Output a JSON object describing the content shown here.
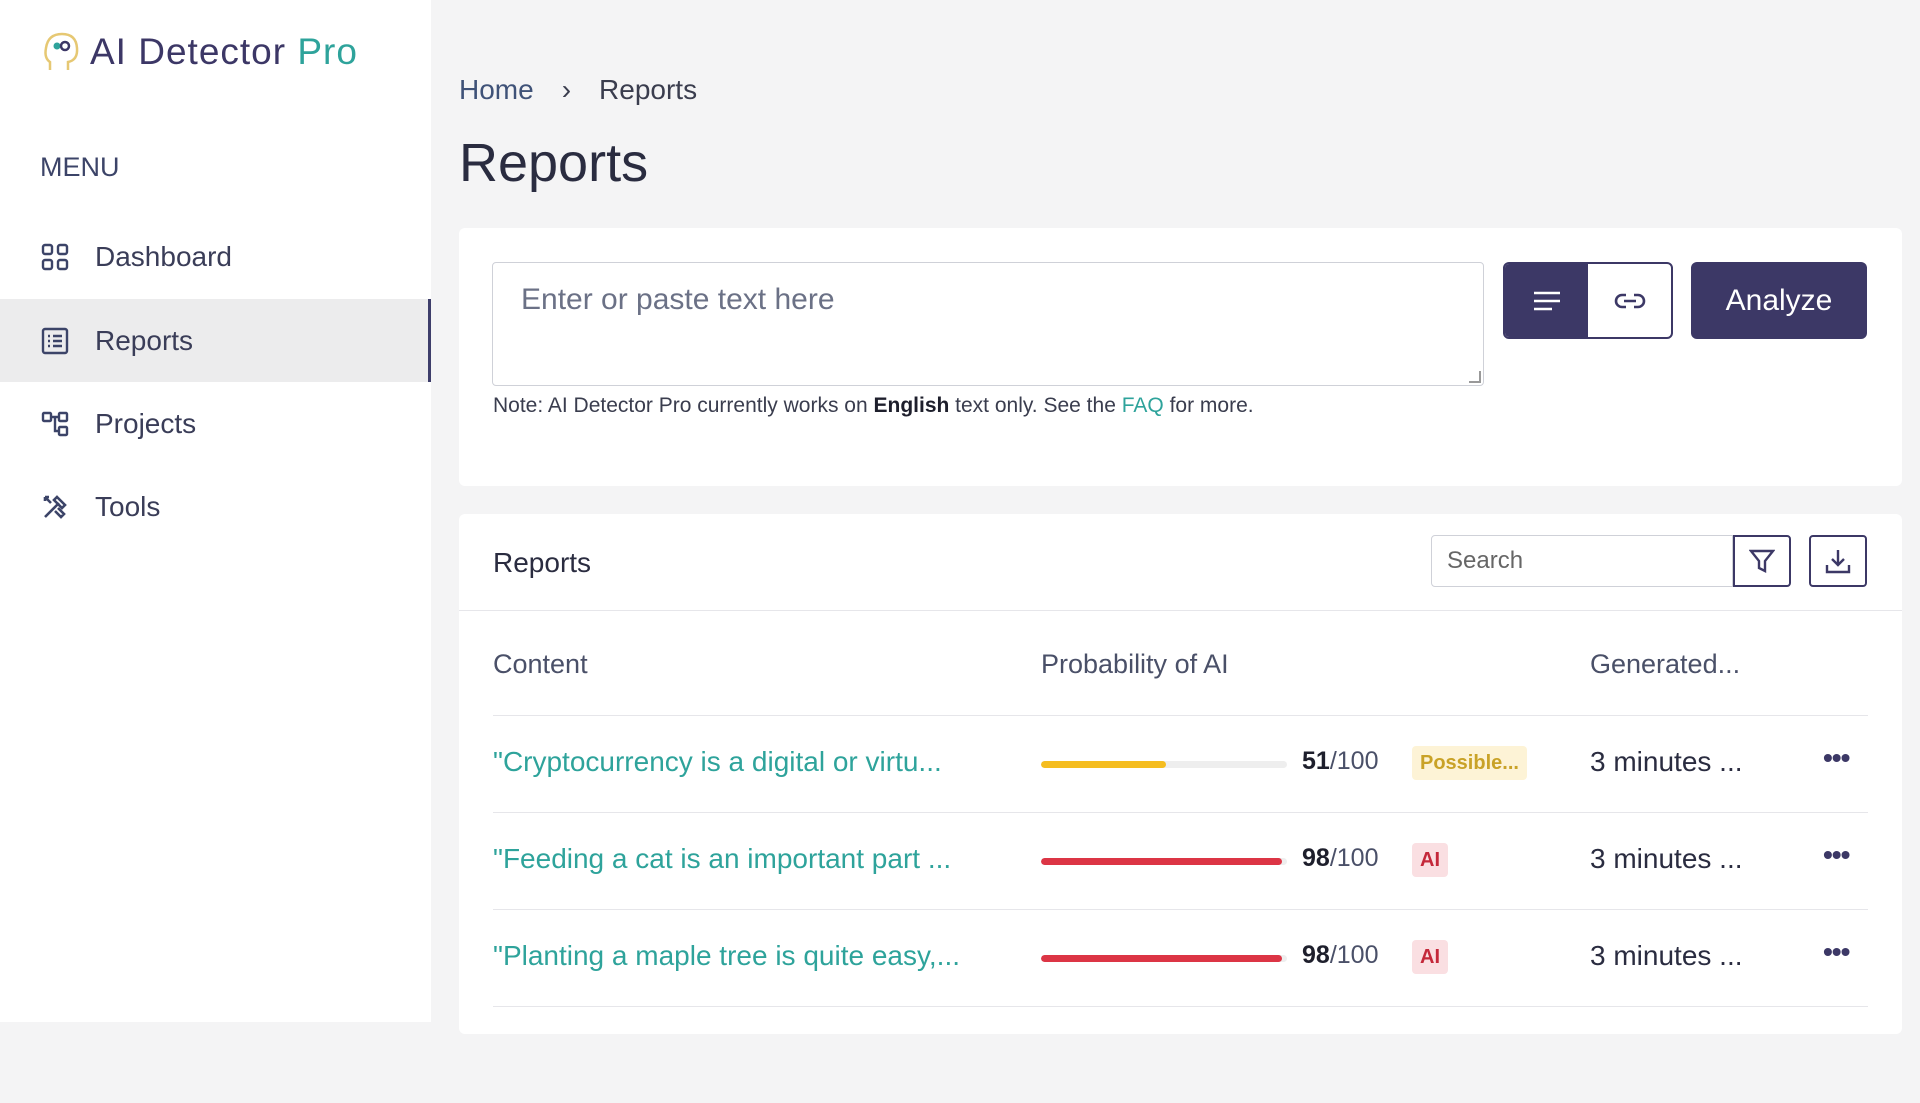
{
  "app": {
    "logo_text": "AI Detector",
    "logo_accent": "Pro"
  },
  "sidebar": {
    "menu_label": "MENU",
    "items": [
      {
        "label": "Dashboard",
        "icon": "grid-icon"
      },
      {
        "label": "Reports",
        "icon": "list-icon",
        "active": true
      },
      {
        "label": "Projects",
        "icon": "hierarchy-icon"
      },
      {
        "label": "Tools",
        "icon": "tools-icon"
      }
    ]
  },
  "breadcrumb": {
    "home": "Home",
    "current": "Reports"
  },
  "page_title": "Reports",
  "analyzer": {
    "placeholder": "Enter or paste text here",
    "analyze_label": "Analyze",
    "note_prefix": "Note: AI Detector Pro currently works on ",
    "note_bold": "English",
    "note_mid": " text only. See the ",
    "note_link": "FAQ",
    "note_suffix": " for more."
  },
  "reports": {
    "title": "Reports",
    "search_placeholder": "Search",
    "columns": {
      "content": "Content",
      "probability": "Probability of AI",
      "generated": "Generated..."
    },
    "rows": [
      {
        "content": "\"Cryptocurrency is a digital or virtu...",
        "score": "51",
        "max": "/100",
        "probability": 51,
        "badge": "Possible...",
        "badge_color": "#c9a227",
        "badge_bg": "#fdf3d6",
        "bar_color": "#f5bd1f",
        "time": "3 minutes ..."
      },
      {
        "content": "\"Feeding a cat is an important part ...",
        "score": "98",
        "max": "/100",
        "probability": 98,
        "badge": "AI",
        "badge_color": "#c4283a",
        "badge_bg": "#fadfe2",
        "bar_color": "#dc3545",
        "time": "3 minutes ..."
      },
      {
        "content": "\"Planting a maple tree is quite easy,...",
        "score": "98",
        "max": "/100",
        "probability": 98,
        "badge": "AI",
        "badge_color": "#c4283a",
        "badge_bg": "#fadfe2",
        "bar_color": "#dc3545",
        "time": "3 minutes ..."
      }
    ]
  },
  "colors": {
    "primary": "#3c3866",
    "accent": "#2ea39b"
  }
}
